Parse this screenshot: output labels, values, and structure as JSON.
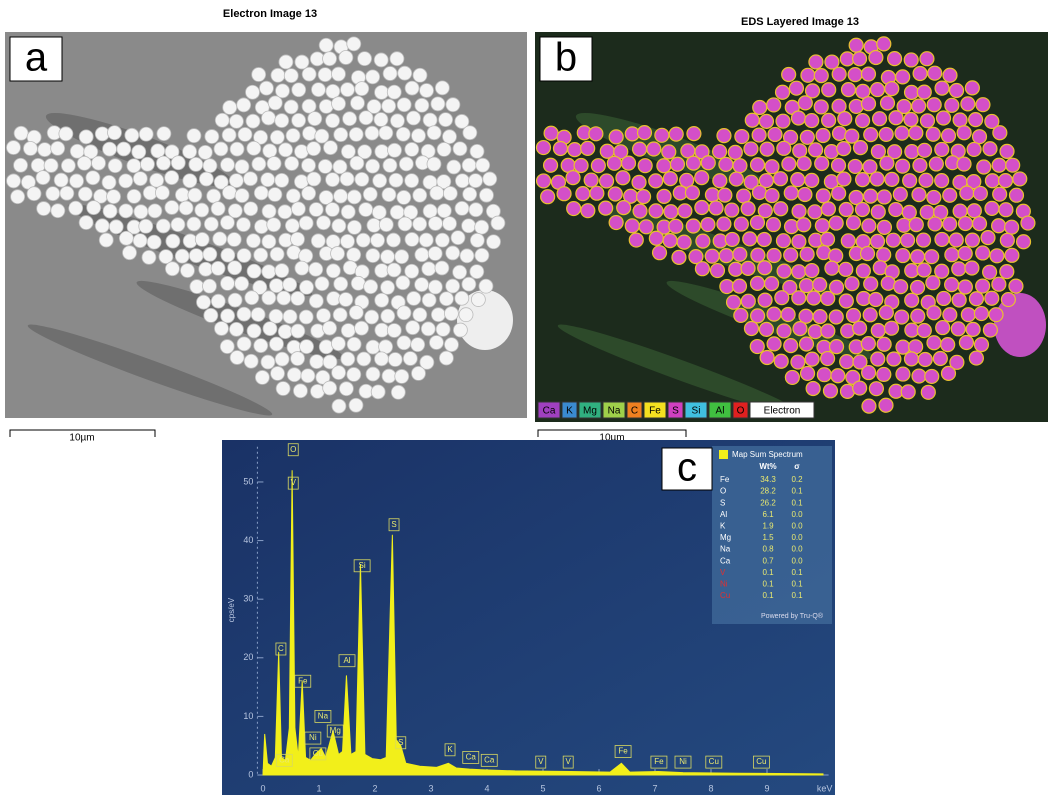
{
  "panel_a": {
    "label": "a",
    "title": "Electron Image 13",
    "scale_bar": "10µm"
  },
  "panel_b": {
    "label": "b",
    "title": "EDS Layered Image 13",
    "scale_bar": "10µm",
    "legend": [
      {
        "name": "Ca",
        "color": "#a040c0"
      },
      {
        "name": "K",
        "color": "#3a8ad0"
      },
      {
        "name": "Mg",
        "color": "#30b080"
      },
      {
        "name": "Na",
        "color": "#9fd04a"
      },
      {
        "name": "C",
        "color": "#f08020"
      },
      {
        "name": "Fe",
        "color": "#f5e020"
      },
      {
        "name": "S",
        "color": "#d040c0"
      },
      {
        "name": "Si",
        "color": "#40c0e0"
      },
      {
        "name": "Al",
        "color": "#40c040"
      },
      {
        "name": "O",
        "color": "#e02020"
      },
      {
        "name": "Electron",
        "color": "#ffffff"
      }
    ]
  },
  "chart_data": {
    "type": "area",
    "panel_label": "c",
    "xlabel": "keV",
    "ylabel": "cps/eV",
    "color": "#f2ef1a",
    "x": [
      0.0,
      0.03,
      0.08,
      0.15,
      0.22,
      0.28,
      0.33,
      0.4,
      0.47,
      0.52,
      0.57,
      0.63,
      0.7,
      0.76,
      0.85,
      0.93,
      1.04,
      1.12,
      1.25,
      1.35,
      1.42,
      1.49,
      1.57,
      1.66,
      1.74,
      1.82,
      1.95,
      2.1,
      2.2,
      2.31,
      2.38,
      2.46,
      2.55,
      2.8,
      3.1,
      3.31,
      3.45,
      3.69,
      3.9,
      4.5,
      5.5,
      6.2,
      6.4,
      6.55,
      7.06,
      7.5,
      8.5,
      10.0
    ],
    "values": [
      0,
      7,
      2,
      1.5,
      3,
      21,
      3,
      2.5,
      8,
      52,
      8,
      3,
      16,
      3,
      2.5,
      3.5,
      4.5,
      3,
      7.5,
      3.5,
      4,
      17,
      3.5,
      4,
      36,
      3.5,
      2.8,
      2.6,
      3,
      41,
      6,
      5,
      2,
      1.5,
      1.3,
      2,
      1.2,
      1,
      0.9,
      0.7,
      0.6,
      0.5,
      2,
      0.5,
      0.6,
      0.4,
      0.3,
      0.2
    ],
    "xlim": [
      -0.1,
      10.1
    ],
    "ylim": [
      0,
      56
    ],
    "xticks": [
      0,
      1,
      2,
      3,
      4,
      5,
      6,
      7,
      8,
      9
    ],
    "yticks": [
      0,
      10,
      20,
      30,
      40,
      50
    ],
    "peak_labels": [
      {
        "text": "O",
        "x": 0.54,
        "y": 55.5
      },
      {
        "text": "V",
        "x": 0.54,
        "y": 49.8
      },
      {
        "text": "C",
        "x": 0.32,
        "y": 21.5
      },
      {
        "text": "Ca",
        "x": 0.38,
        "y": 2.5
      },
      {
        "text": "Fe",
        "x": 0.71,
        "y": 16
      },
      {
        "text": "Ni",
        "x": 0.89,
        "y": 6.3
      },
      {
        "text": "Cu",
        "x": 0.98,
        "y": 3.6
      },
      {
        "text": "Na",
        "x": 1.07,
        "y": 10
      },
      {
        "text": "Mg",
        "x": 1.29,
        "y": 7.5
      },
      {
        "text": "Al",
        "x": 1.5,
        "y": 19.5
      },
      {
        "text": "Si",
        "x": 1.77,
        "y": 35.7
      },
      {
        "text": "S",
        "x": 2.34,
        "y": 42.7
      },
      {
        "text": "S",
        "x": 2.46,
        "y": 5.5
      },
      {
        "text": "K",
        "x": 3.34,
        "y": 4.3
      },
      {
        "text": "Ca",
        "x": 3.71,
        "y": 3
      },
      {
        "text": "Ca",
        "x": 4.04,
        "y": 2.5
      },
      {
        "text": "V",
        "x": 4.96,
        "y": 2.2
      },
      {
        "text": "V",
        "x": 5.45,
        "y": 2.2
      },
      {
        "text": "Fe",
        "x": 6.43,
        "y": 4
      },
      {
        "text": "Fe",
        "x": 7.07,
        "y": 2.2
      },
      {
        "text": "Ni",
        "x": 7.5,
        "y": 2.2
      },
      {
        "text": "Cu",
        "x": 8.05,
        "y": 2.2
      },
      {
        "text": "Cu",
        "x": 8.9,
        "y": 2.2
      }
    ],
    "table": {
      "title": "Map Sum Spectrum",
      "columns": [
        "Wt%",
        "σ"
      ],
      "rows": [
        {
          "element": "Fe",
          "wt": "34.3",
          "sigma": "0.2"
        },
        {
          "element": "O",
          "wt": "28.2",
          "sigma": "0.1"
        },
        {
          "element": "S",
          "wt": "26.2",
          "sigma": "0.1"
        },
        {
          "element": "Al",
          "wt": "6.1",
          "sigma": "0.0"
        },
        {
          "element": "K",
          "wt": "1.9",
          "sigma": "0.0"
        },
        {
          "element": "Mg",
          "wt": "1.5",
          "sigma": "0.0"
        },
        {
          "element": "Na",
          "wt": "0.8",
          "sigma": "0.0"
        },
        {
          "element": "Ca",
          "wt": "0.7",
          "sigma": "0.0"
        },
        {
          "element": "V",
          "wt": "0.1",
          "sigma": "0.1",
          "color": "#e03030"
        },
        {
          "element": "Ni",
          "wt": "0.1",
          "sigma": "0.1",
          "color": "#e03030"
        },
        {
          "element": "Cu",
          "wt": "0.1",
          "sigma": "0.1",
          "color": "#e03030"
        }
      ],
      "footer": "Powered by Tru-Q®"
    }
  }
}
